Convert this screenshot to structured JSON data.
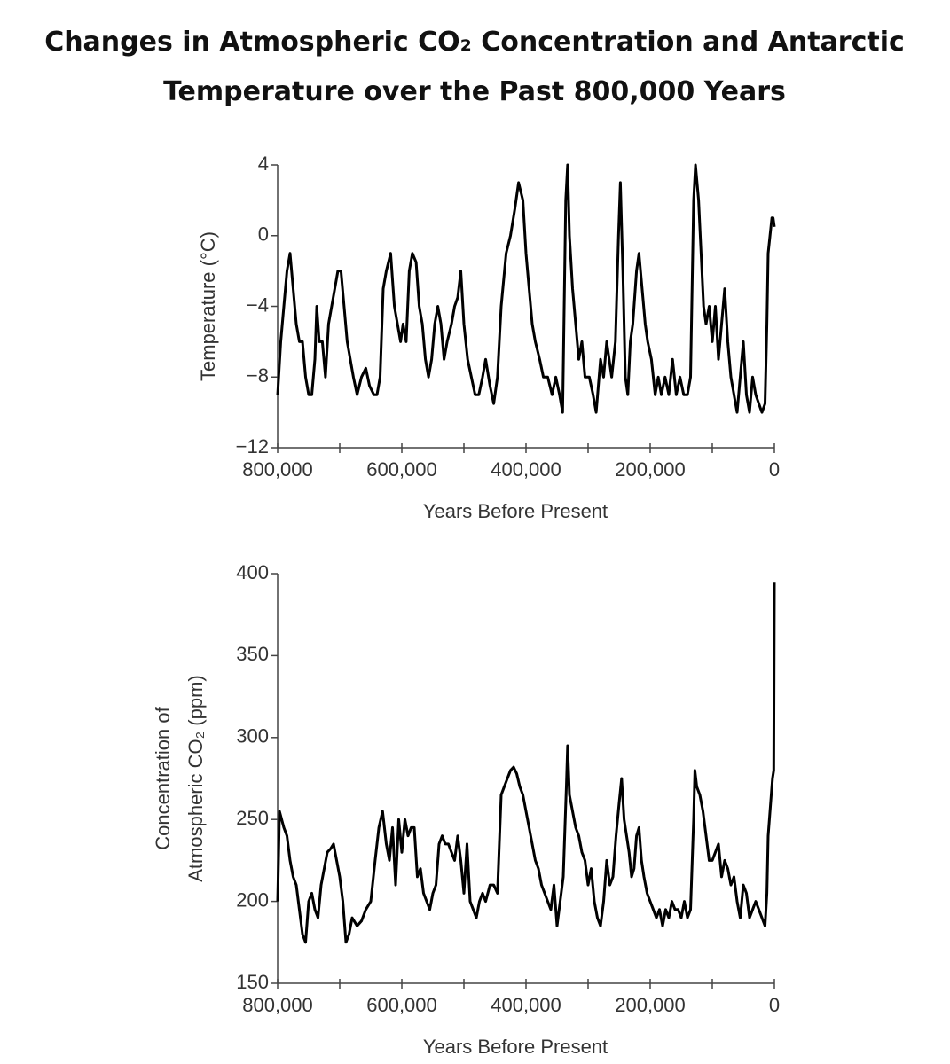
{
  "title": "Changes in Atmospheric CO₂ Concentration and Antarctic Temperature over the Past 800,000 Years",
  "chart_data": [
    {
      "type": "line",
      "ylabel": "Temperature (°C)",
      "xlabel": "Years Before Present",
      "color": "#000000",
      "grid": false,
      "xlim": [
        800000,
        0
      ],
      "ylim": [
        -12,
        4
      ],
      "xticks": [
        {
          "value": 800000,
          "label": "800,000"
        },
        {
          "value": 600000,
          "label": "600,000"
        },
        {
          "value": 400000,
          "label": "400,000"
        },
        {
          "value": 200000,
          "label": "200,000"
        },
        0
      ],
      "xminorticks": [
        700000,
        500000,
        300000,
        100000
      ],
      "yticks": [
        4,
        0,
        {
          "value": -4,
          "label": "−4"
        },
        {
          "value": -8,
          "label": "−8"
        },
        {
          "value": -12,
          "label": "−12"
        }
      ],
      "x": [
        800000,
        795000,
        790000,
        785000,
        780000,
        775000,
        770000,
        765000,
        760000,
        755000,
        750000,
        745000,
        740000,
        737000,
        733000,
        728000,
        723000,
        718000,
        713000,
        708000,
        703000,
        698000,
        693000,
        688000,
        683000,
        678000,
        672000,
        665000,
        658000,
        652000,
        645000,
        640000,
        635000,
        630000,
        625000,
        618000,
        612000,
        607000,
        602000,
        598000,
        593000,
        588000,
        583000,
        577000,
        572000,
        567000,
        562000,
        557000,
        552000,
        547000,
        542000,
        537000,
        532000,
        527000,
        520000,
        515000,
        510000,
        505000,
        500000,
        494000,
        488000,
        482000,
        476000,
        470000,
        465000,
        458000,
        452000,
        446000,
        440000,
        432000,
        425000,
        418000,
        412000,
        405000,
        400000,
        395000,
        390000,
        385000,
        378000,
        372000,
        365000,
        358000,
        352000,
        346000,
        341000,
        336000,
        333000,
        330000,
        325000,
        320000,
        315000,
        310000,
        305000,
        298000,
        292000,
        287000,
        280000,
        275000,
        270000,
        262000,
        256000,
        251000,
        248000,
        244000,
        240000,
        236000,
        232000,
        228000,
        222000,
        218000,
        213000,
        208000,
        204000,
        198000,
        192000,
        187000,
        182000,
        176000,
        170000,
        164000,
        158000,
        152000,
        146000,
        140000,
        135000,
        130000,
        127000,
        122000,
        118000,
        114000,
        110000,
        105000,
        100000,
        95000,
        90000,
        85000,
        80000,
        75000,
        70000,
        65000,
        60000,
        55000,
        50000,
        45000,
        40000,
        35000,
        30000,
        25000,
        20000,
        15000,
        12000,
        10000,
        7000,
        4000,
        2000,
        0
      ],
      "values": [
        -9,
        -6,
        -4,
        -2,
        -1,
        -3,
        -5,
        -6,
        -6,
        -8,
        -9,
        -9,
        -7,
        -4,
        -6,
        -6,
        -8,
        -5,
        -4,
        -3,
        -2,
        -2,
        -4,
        -6,
        -7,
        -8,
        -9,
        -8,
        -7.5,
        -8.5,
        -9,
        -9,
        -8,
        -3,
        -2,
        -1,
        -4,
        -5,
        -6,
        -5,
        -6,
        -2,
        -1,
        -1.5,
        -4,
        -5,
        -7,
        -8,
        -7,
        -5,
        -4,
        -5,
        -7,
        -6,
        -5,
        -4,
        -3.5,
        -2,
        -5,
        -7,
        -8,
        -9,
        -9,
        -8,
        -7,
        -8.5,
        -9.5,
        -8,
        -4,
        -1,
        0,
        1.5,
        3,
        2,
        -1,
        -3,
        -5,
        -6,
        -7,
        -8,
        -8,
        -9,
        -8,
        -9,
        -10,
        2,
        4,
        0,
        -3,
        -5,
        -7,
        -6,
        -8,
        -8,
        -9,
        -10,
        -7,
        -8,
        -6,
        -8,
        -6,
        0,
        3,
        -2,
        -8,
        -9,
        -6,
        -5,
        -2,
        -1,
        -3,
        -5,
        -6,
        -7,
        -9,
        -8,
        -9,
        -8,
        -9,
        -7,
        -9,
        -8,
        -9,
        -9,
        -8,
        2,
        4,
        2,
        -1,
        -4,
        -5,
        -4,
        -6,
        -4,
        -7,
        -5,
        -3,
        -6,
        -8,
        -9,
        -10,
        -8,
        -6,
        -9,
        -10,
        -8,
        -9,
        -9.5,
        -10,
        -9.5,
        -5,
        -1,
        0,
        1,
        1,
        0.5
      ]
    },
    {
      "type": "line",
      "ylabel": [
        "Concentration of",
        "Atmospheric CO₂ (ppm)"
      ],
      "xlabel": "Years Before Present",
      "color": "#000000",
      "grid": false,
      "xlim": [
        800000,
        0
      ],
      "ylim": [
        150,
        400
      ],
      "xticks": [
        {
          "value": 800000,
          "label": "800,000"
        },
        {
          "value": 600000,
          "label": "600,000"
        },
        {
          "value": 400000,
          "label": "400,000"
        },
        {
          "value": 200000,
          "label": "200,000"
        },
        0
      ],
      "xminorticks": [
        700000,
        500000,
        300000,
        100000
      ],
      "yticks": [
        150,
        200,
        250,
        300,
        350,
        400
      ],
      "x": [
        800000,
        797000,
        790000,
        785000,
        780000,
        775000,
        770000,
        765000,
        760000,
        755000,
        750000,
        745000,
        740000,
        735000,
        730000,
        725000,
        720000,
        715000,
        710000,
        705000,
        700000,
        695000,
        690000,
        685000,
        680000,
        672000,
        665000,
        658000,
        650000,
        643000,
        637000,
        631000,
        625000,
        620000,
        615000,
        610000,
        605000,
        600000,
        595000,
        590000,
        585000,
        580000,
        575000,
        570000,
        565000,
        560000,
        555000,
        550000,
        545000,
        540000,
        535000,
        530000,
        525000,
        520000,
        515000,
        510000,
        505000,
        500000,
        495000,
        490000,
        485000,
        480000,
        475000,
        470000,
        465000,
        458000,
        452000,
        446000,
        440000,
        435000,
        430000,
        425000,
        420000,
        415000,
        410000,
        405000,
        400000,
        395000,
        390000,
        385000,
        380000,
        375000,
        370000,
        365000,
        360000,
        355000,
        350000,
        345000,
        340000,
        335000,
        333000,
        330000,
        325000,
        320000,
        315000,
        310000,
        305000,
        300000,
        295000,
        290000,
        285000,
        280000,
        275000,
        270000,
        265000,
        260000,
        255000,
        250000,
        246000,
        242000,
        238000,
        234000,
        230000,
        226000,
        222000,
        218000,
        214000,
        210000,
        205000,
        200000,
        195000,
        190000,
        185000,
        180000,
        175000,
        170000,
        165000,
        160000,
        155000,
        150000,
        145000,
        140000,
        135000,
        130000,
        128000,
        125000,
        120000,
        115000,
        110000,
        105000,
        100000,
        95000,
        90000,
        85000,
        80000,
        75000,
        70000,
        65000,
        60000,
        55000,
        50000,
        45000,
        40000,
        35000,
        30000,
        25000,
        20000,
        15000,
        12000,
        10000,
        7000,
        5000,
        3000,
        1000,
        0
      ],
      "values": [
        200,
        255,
        245,
        240,
        225,
        215,
        210,
        195,
        180,
        175,
        200,
        205,
        195,
        190,
        210,
        220,
        230,
        232,
        235,
        225,
        215,
        200,
        175,
        180,
        190,
        185,
        188,
        195,
        200,
        225,
        245,
        255,
        235,
        225,
        245,
        210,
        250,
        230,
        250,
        240,
        245,
        245,
        215,
        220,
        205,
        200,
        195,
        205,
        210,
        235,
        240,
        235,
        235,
        230,
        225,
        240,
        225,
        205,
        235,
        200,
        195,
        190,
        200,
        205,
        200,
        210,
        210,
        205,
        265,
        270,
        275,
        280,
        282,
        278,
        270,
        265,
        255,
        245,
        235,
        225,
        220,
        210,
        205,
        200,
        195,
        210,
        185,
        200,
        215,
        270,
        295,
        265,
        255,
        245,
        240,
        230,
        225,
        210,
        220,
        200,
        190,
        185,
        200,
        225,
        210,
        215,
        240,
        260,
        275,
        250,
        240,
        230,
        215,
        220,
        240,
        245,
        225,
        215,
        205,
        200,
        195,
        190,
        195,
        185,
        195,
        190,
        200,
        195,
        195,
        190,
        200,
        190,
        195,
        250,
        280,
        270,
        265,
        255,
        240,
        225,
        225,
        230,
        235,
        215,
        225,
        220,
        210,
        215,
        200,
        190,
        210,
        205,
        190,
        195,
        200,
        195,
        190,
        185,
        205,
        240,
        255,
        265,
        275,
        280,
        395
      ]
    }
  ]
}
